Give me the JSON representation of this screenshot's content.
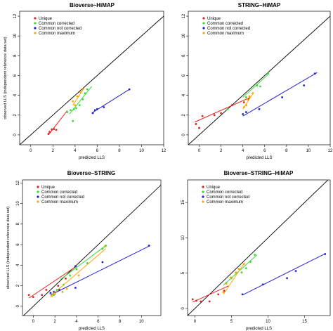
{
  "chart_data": [
    {
      "type": "scatter",
      "title": "Bioverse–HiMAP",
      "xlabel": "predicted LLS",
      "ylabel": "observed LLS (independent reference data set)",
      "xlim": [
        -1,
        12
      ],
      "ylim": [
        -1,
        12.5
      ],
      "xticks": [
        0,
        2,
        4,
        6,
        8,
        10,
        12
      ],
      "yticks": [
        0,
        2,
        4,
        6,
        8,
        10,
        12
      ],
      "legend": "top-left",
      "diagonal": true,
      "series": [
        {
          "name": "Unique",
          "color": "#e8201c",
          "points": [
            [
              1.6,
              0.1
            ],
            [
              1.7,
              0.3
            ],
            [
              1.9,
              0.55
            ],
            [
              2.1,
              0.6
            ],
            [
              2.3,
              0.5
            ]
          ],
          "fit": [
            [
              1.6,
              0.0
            ],
            [
              3.3,
              2.45
            ]
          ]
        },
        {
          "name": "Common corrected",
          "color": "#33dd33",
          "points": [
            [
              3.3,
              2.3
            ],
            [
              3.6,
              2.5
            ],
            [
              3.8,
              1.4
            ],
            [
              3.9,
              2.6
            ],
            [
              4.1,
              2.7
            ],
            [
              4.4,
              3.0
            ],
            [
              4.7,
              3.6
            ],
            [
              4.9,
              4.2
            ],
            [
              5.1,
              4.6
            ]
          ],
          "fit": [
            [
              3.5,
              2.1
            ],
            [
              5.5,
              4.9
            ]
          ]
        },
        {
          "name": "Common not corrected",
          "color": "#2222cc",
          "points": [
            [
              5.6,
              2.2
            ],
            [
              5.8,
              2.5
            ],
            [
              6.0,
              2.6
            ],
            [
              6.6,
              2.8
            ],
            [
              8.9,
              4.6
            ]
          ],
          "fit": [
            [
              5.5,
              2.2
            ],
            [
              8.9,
              4.6
            ]
          ]
        },
        {
          "name": "Common maximum",
          "color": "#ffa500",
          "points": [
            [
              3.8,
              3.4
            ],
            [
              4.0,
              3.0
            ],
            [
              4.2,
              3.9
            ],
            [
              4.5,
              4.3
            ],
            [
              4.7,
              4.6
            ]
          ],
          "fit": [
            [
              3.8,
              3.0
            ],
            [
              4.8,
              4.7
            ]
          ]
        }
      ]
    },
    {
      "type": "scatter",
      "title": "STRING–HiMAP",
      "xlabel": "predicted LLS",
      "ylabel": "",
      "xlim": [
        -1,
        12
      ],
      "ylim": [
        -1,
        12.5
      ],
      "xticks": [
        0,
        2,
        4,
        6,
        8,
        10,
        12
      ],
      "yticks": [
        0,
        2,
        4,
        6,
        8,
        10,
        12
      ],
      "legend": "top-left",
      "diagonal": true,
      "series": [
        {
          "name": "Unique",
          "color": "#e8201c",
          "points": [
            [
              -0.3,
              1.1
            ],
            [
              0.0,
              0.7
            ],
            [
              0.3,
              1.9
            ],
            [
              1.4,
              2.0
            ],
            [
              2.0,
              2.2
            ],
            [
              3.0,
              3.0
            ],
            [
              4.1,
              3.3
            ],
            [
              4.5,
              3.6
            ]
          ],
          "fit": [
            [
              -0.4,
              1.3
            ],
            [
              4.7,
              3.8
            ]
          ]
        },
        {
          "name": "Common corrected",
          "color": "#33dd33",
          "points": [
            [
              2.6,
              2.6
            ],
            [
              4.3,
              3.8
            ],
            [
              5.3,
              5.0
            ],
            [
              5.6,
              4.9
            ],
            [
              6.3,
              6.2
            ]
          ],
          "fit": [
            [
              4.0,
              3.8
            ],
            [
              6.4,
              6.2
            ]
          ]
        },
        {
          "name": "Common not corrected",
          "color": "#2222cc",
          "points": [
            [
              4.0,
              2.1
            ],
            [
              4.3,
              2.3
            ],
            [
              5.5,
              2.6
            ],
            [
              7.6,
              3.8
            ],
            [
              9.6,
              5.0
            ],
            [
              10.6,
              6.2
            ]
          ],
          "fit": [
            [
              4.0,
              1.9
            ],
            [
              10.8,
              6.3
            ]
          ]
        },
        {
          "name": "Common maximum",
          "color": "#ffa500",
          "points": [
            [
              4.1,
              2.8
            ],
            [
              4.3,
              3.0
            ],
            [
              4.4,
              3.6
            ],
            [
              4.6,
              3.9
            ],
            [
              4.9,
              4.2
            ]
          ],
          "fit": [
            [
              4.0,
              2.6
            ],
            [
              5.0,
              4.3
            ]
          ]
        }
      ]
    },
    {
      "type": "scatter",
      "title": "Bioverse–STRING",
      "xlabel": "predicted LLS",
      "ylabel": "observed LLS (independent reference data set)",
      "xlim": [
        -1,
        11.8
      ],
      "ylim": [
        -0.9,
        12.3
      ],
      "xticks": [
        0,
        2,
        4,
        6,
        8,
        10
      ],
      "yticks": [
        0,
        2,
        4,
        6,
        8,
        10,
        12
      ],
      "legend": "top-left",
      "diagonal": true,
      "series": [
        {
          "name": "Unique",
          "color": "#e8201c",
          "points": [
            [
              -0.4,
              1.1
            ],
            [
              0.0,
              0.9
            ],
            [
              0.8,
              1.1
            ],
            [
              1.2,
              1.6
            ],
            [
              2.3,
              2.0
            ],
            [
              3.0,
              2.7
            ]
          ],
          "fit": [
            [
              -0.4,
              0.8
            ],
            [
              4.0,
              3.9
            ]
          ]
        },
        {
          "name": "Common corrected",
          "color": "#33dd33",
          "points": [
            [
              1.9,
              1.1
            ],
            [
              2.2,
              1.6
            ],
            [
              2.8,
              2.1
            ],
            [
              3.4,
              3.0
            ],
            [
              4.0,
              3.6
            ],
            [
              5.0,
              4.2
            ],
            [
              6.4,
              5.6
            ],
            [
              6.7,
              5.9
            ]
          ],
          "fit": [
            [
              2.5,
              2.6
            ],
            [
              6.7,
              5.9
            ]
          ]
        },
        {
          "name": "Common not corrected",
          "color": "#2222cc",
          "points": [
            [
              1.6,
              1.3
            ],
            [
              1.9,
              1.4
            ],
            [
              2.4,
              1.6
            ],
            [
              3.9,
              1.8
            ],
            [
              3.9,
              3.9
            ],
            [
              6.4,
              4.3
            ],
            [
              10.7,
              5.9
            ]
          ],
          "fit": [
            [
              1.6,
              1.1
            ],
            [
              10.8,
              5.9
            ]
          ]
        },
        {
          "name": "Common maximum",
          "color": "#ffa500",
          "points": [
            [
              1.7,
              1.0
            ],
            [
              2.0,
              1.2
            ],
            [
              2.7,
              1.4
            ],
            [
              3.1,
              1.7
            ],
            [
              4.2,
              3.0
            ],
            [
              6.6,
              5.8
            ]
          ],
          "fit": [
            [
              1.6,
              1.0
            ],
            [
              6.7,
              5.6
            ]
          ]
        }
      ]
    },
    {
      "type": "scatter",
      "title": "Bioverse–STRING–HiMAP",
      "xlabel": "predicted LLS",
      "ylabel": "",
      "xlim": [
        -1,
        18.5
      ],
      "ylim": [
        -1,
        18.2
      ],
      "xticks": [
        0,
        5,
        10,
        15
      ],
      "yticks": [
        0,
        5,
        10,
        15
      ],
      "legend": "top-left",
      "diagonal": true,
      "series": [
        {
          "name": "Unique",
          "color": "#e8201c",
          "points": [
            [
              -0.3,
              1.3
            ],
            [
              0.2,
              1.1
            ],
            [
              0.8,
              1.0
            ],
            [
              2.0,
              1.0
            ],
            [
              3.2,
              2.0
            ],
            [
              4.0,
              2.5
            ]
          ],
          "fit": [
            [
              -0.3,
              0.9
            ],
            [
              4.6,
              3.2
            ]
          ]
        },
        {
          "name": "Common corrected",
          "color": "#33dd33",
          "points": [
            [
              4.3,
              3.6
            ],
            [
              5.0,
              4.3
            ],
            [
              6.4,
              5.1
            ],
            [
              7.0,
              5.7
            ],
            [
              7.6,
              6.6
            ],
            [
              8.2,
              7.6
            ]
          ],
          "fit": [
            [
              3.9,
              3.3
            ],
            [
              8.5,
              7.6
            ]
          ]
        },
        {
          "name": "Common not corrected",
          "color": "#2222cc",
          "points": [
            [
              6.5,
              2.0
            ],
            [
              9.3,
              3.4
            ],
            [
              12.6,
              4.3
            ],
            [
              13.8,
              5.3
            ],
            [
              17.8,
              7.7
            ]
          ],
          "fit": [
            [
              6.5,
              1.9
            ],
            [
              17.9,
              7.8
            ]
          ]
        },
        {
          "name": "Common maximum",
          "color": "#ffa500",
          "points": [
            [
              3.9,
              2.3
            ],
            [
              4.3,
              3.5
            ],
            [
              4.9,
              4.4
            ],
            [
              5.6,
              5.1
            ],
            [
              6.0,
              5.6
            ],
            [
              6.7,
              6.3
            ]
          ],
          "fit": [
            [
              3.9,
              2.0
            ],
            [
              6.8,
              6.5
            ]
          ]
        }
      ]
    }
  ]
}
